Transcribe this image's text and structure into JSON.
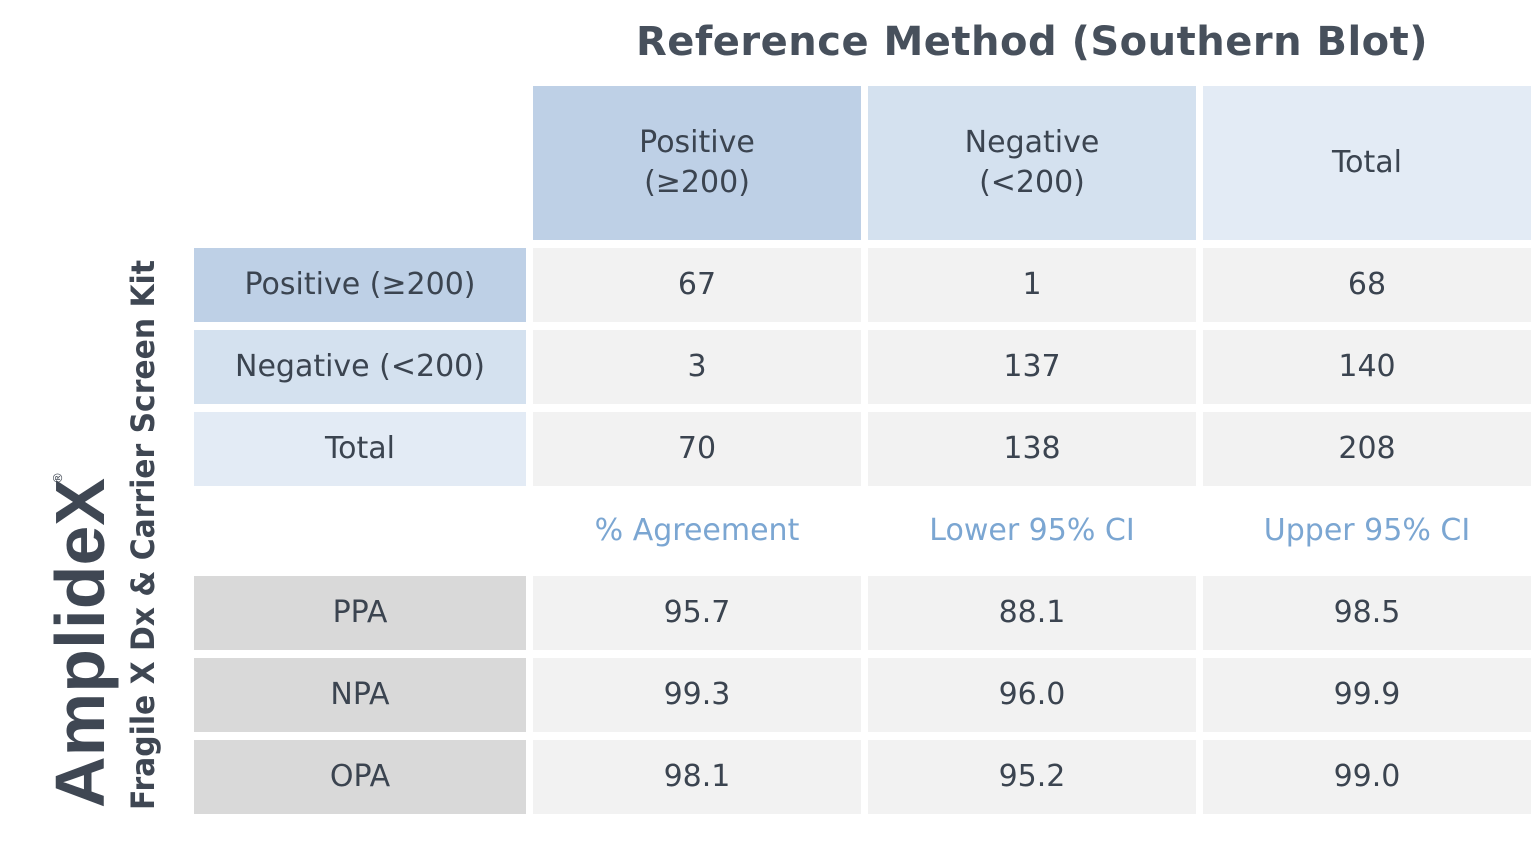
{
  "title": "Reference Method (Southern Blot)",
  "brand": {
    "name": "AmplideX",
    "registered": "®",
    "product": "Fragile X Dx & Carrier Screen Kit"
  },
  "columns": {
    "positive": "Positive\n(≥200)",
    "negative": "Negative\n(<200)",
    "total": "Total"
  },
  "rows": [
    {
      "label": "Positive (≥200)",
      "positive": "67",
      "negative": "1",
      "total": "68"
    },
    {
      "label": "Negative (<200)",
      "positive": "3",
      "negative": "137",
      "total": "140"
    },
    {
      "label": "Total",
      "positive": "70",
      "negative": "138",
      "total": "208"
    }
  ],
  "stats_header": {
    "agreement": "% Agreement",
    "lower": "Lower 95% CI",
    "upper": "Upper 95% CI"
  },
  "stats": [
    {
      "label": "PPA",
      "agreement": "95.7",
      "lower": "88.1",
      "upper": "98.5"
    },
    {
      "label": "NPA",
      "agreement": "99.3",
      "lower": "96.0",
      "upper": "99.9"
    },
    {
      "label": "OPA",
      "agreement": "98.1",
      "lower": "95.2",
      "upper": "99.0"
    }
  ],
  "colors": {
    "header_positive": "#bed0e6",
    "header_negative": "#d4e1ef",
    "header_total": "#e3ebf5",
    "stat_label_bg": "#d9d9d9",
    "value_bg": "#f2f2f2",
    "accent_text": "#7ba6d2",
    "title_text": "#47505c"
  }
}
